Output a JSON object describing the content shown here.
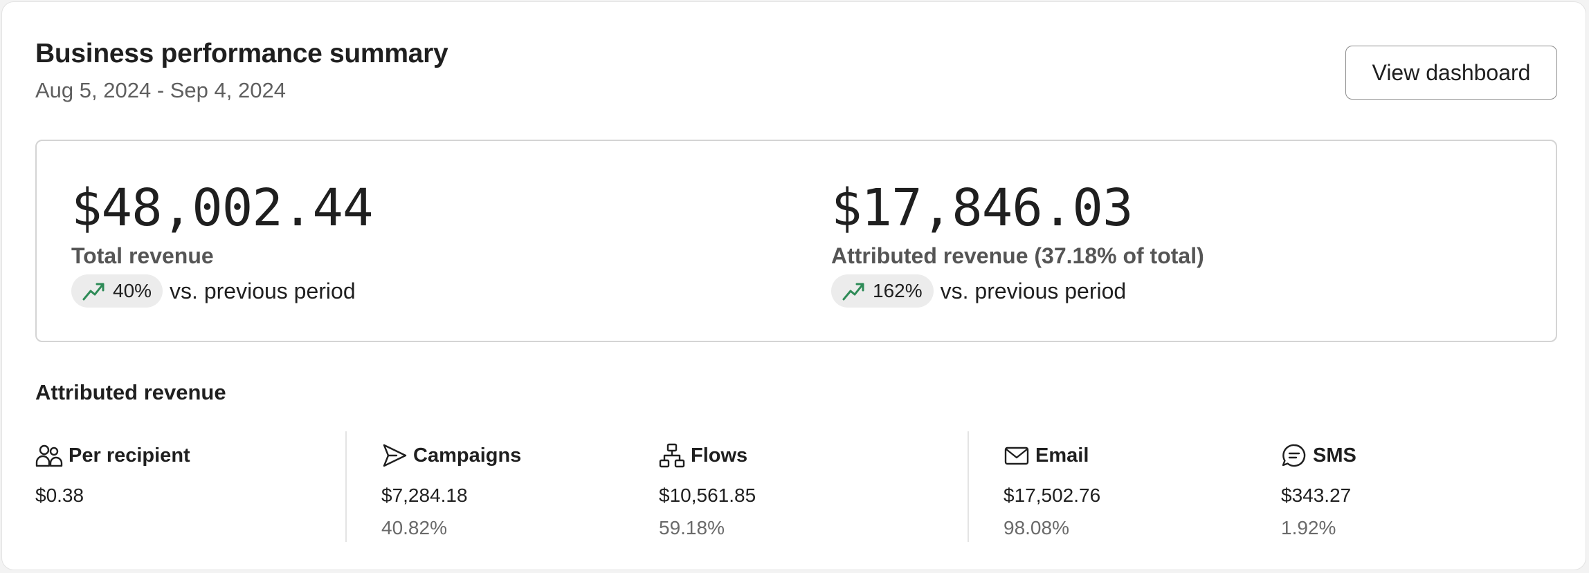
{
  "header": {
    "title": "Business performance summary",
    "date_range": "Aug 5, 2024 - Sep 4, 2024",
    "view_dashboard_label": "View dashboard"
  },
  "metrics": [
    {
      "value": "$48,002.44",
      "label": "Total revenue",
      "change": "40%",
      "change_icon": "trending-up-icon",
      "change_suffix": "vs. previous period"
    },
    {
      "value": "$17,846.03",
      "label": "Attributed revenue (37.18% of total)",
      "change": "162%",
      "change_icon": "trending-up-icon",
      "change_suffix": "vs. previous period"
    }
  ],
  "attributed": {
    "title": "Attributed revenue",
    "stats": [
      {
        "label": "Per recipient",
        "icon": "users-icon",
        "value": "$0.38",
        "pct": ""
      },
      {
        "label": "Campaigns",
        "icon": "send-icon",
        "value": "$7,284.18",
        "pct": "40.82%"
      },
      {
        "label": "Flows",
        "icon": "flow-icon",
        "value": "$10,561.85",
        "pct": "59.18%"
      },
      {
        "label": "Email",
        "icon": "mail-icon",
        "value": "$17,502.76",
        "pct": "98.08%"
      },
      {
        "label": "SMS",
        "icon": "message-icon",
        "value": "$343.27",
        "pct": "1.92%"
      }
    ]
  },
  "colors": {
    "trend_up": "#2e8b57",
    "pill_bg": "#ececec",
    "muted_text": "#5f5f5f"
  }
}
